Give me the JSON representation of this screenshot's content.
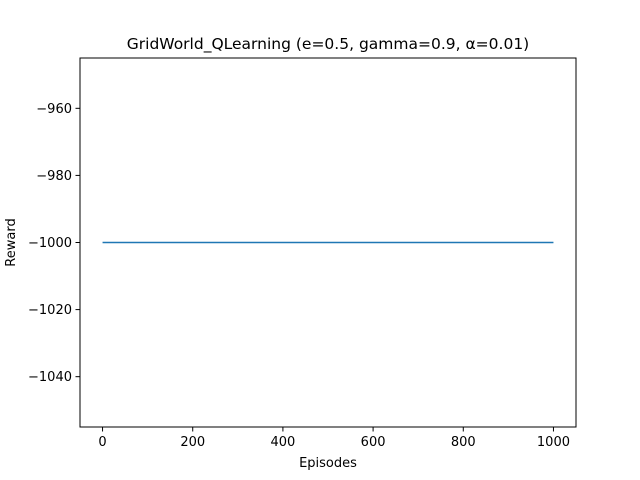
{
  "chart_data": {
    "type": "line",
    "title": "GridWorld_QLearning (e=0.5, gamma=0.9, α=0.01)",
    "xlabel": "Episodes",
    "ylabel": "Reward",
    "xlim": [
      -50,
      1050
    ],
    "ylim": [
      -1055,
      -945
    ],
    "xticks": [
      0,
      200,
      400,
      600,
      800,
      1000
    ],
    "xtick_labels": [
      "0",
      "200",
      "400",
      "600",
      "800",
      "1000"
    ],
    "yticks": [
      -960,
      -980,
      -1000,
      -1020,
      -1040
    ],
    "ytick_labels": [
      "−960",
      "−980",
      "−1000",
      "−1020",
      "−1040"
    ],
    "grid": false,
    "legend": "none",
    "series": [
      {
        "color": "#1f77b4",
        "x": [
          0,
          1000
        ],
        "y": [
          -1000,
          -1000
        ]
      }
    ]
  }
}
